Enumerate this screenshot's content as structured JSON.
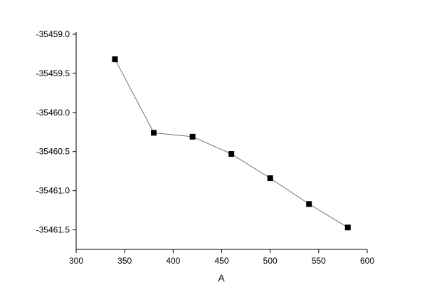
{
  "chart_data": {
    "type": "line",
    "x_label": "A",
    "x": [
      340,
      380,
      420,
      460,
      500,
      540,
      580
    ],
    "series": [
      {
        "color": "#000000",
        "values": [
          -35459.32,
          -35460.26,
          -35460.31,
          -35460.53,
          -35460.84,
          -35461.17,
          -35461.47
        ]
      }
    ],
    "xlim": [
      300,
      600
    ],
    "xticks": [
      300,
      350,
      400,
      450,
      500,
      550,
      600
    ],
    "ylim": [
      -35461.75,
      -35459.0
    ],
    "yticks": [
      {
        "value": -35459,
        "label": "-35459.0"
      },
      -35459.5,
      {
        "value": -35460,
        "label": "-35460.0"
      },
      -35460.5,
      {
        "value": -35461,
        "label": "-35461.0"
      },
      -35461.5
    ],
    "grid": false
  }
}
